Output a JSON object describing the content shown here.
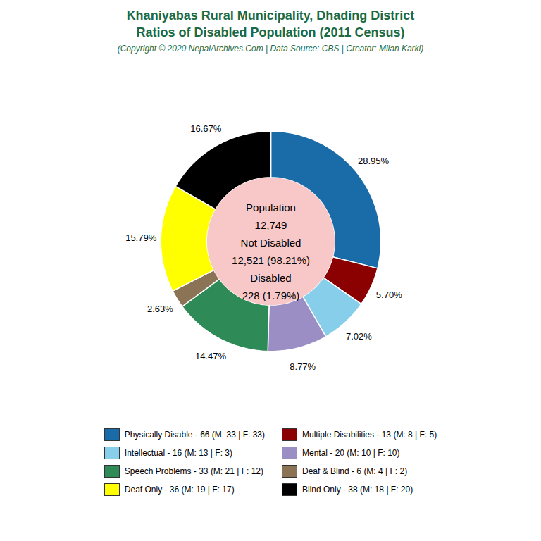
{
  "chart_data": {
    "type": "pie",
    "title": [
      "Khaniyabas Rural Municipality, Dhading District",
      "Ratios of Disabled Population (2011 Census)"
    ],
    "subtitle": "(Copyright © 2020 NepalArchives.Com | Data Source: CBS | Creator: Milan Karki)",
    "categories": [
      "Physically Disable - 66 (M: 33 | F: 33)",
      "Multiple Disabilities - 13 (M: 8 | F: 5)",
      "Intellectual - 16 (M: 13 | F: 3)",
      "Mental - 20 (M: 10 | F: 10)",
      "Speech Problems - 33 (M: 21 | F: 12)",
      "Deaf & Blind - 6 (M: 4 | F: 2)",
      "Deaf Only - 36 (M: 19 | F: 17)",
      "Blind Only - 38 (M: 18 | F: 20)"
    ],
    "values": [
      28.95,
      5.7,
      7.02,
      8.77,
      14.47,
      2.63,
      15.79,
      16.67
    ],
    "value_labels": [
      "28.95%",
      "5.70%",
      "7.02%",
      "8.77%",
      "14.47%",
      "2.63%",
      "15.79%",
      "16.67%"
    ],
    "colors": [
      "#1A6CA8",
      "#8B0000",
      "#87CEEB",
      "#9B8EC4",
      "#2E8B57",
      "#8B7355",
      "#FFFF00",
      "#000000"
    ],
    "data_labels": true,
    "legend": "bottom",
    "annotations": [
      "Population",
      "12,749",
      "Not Disabled",
      "12,521 (98.21%)",
      "Disabled",
      "228 (1.79%)"
    ]
  }
}
